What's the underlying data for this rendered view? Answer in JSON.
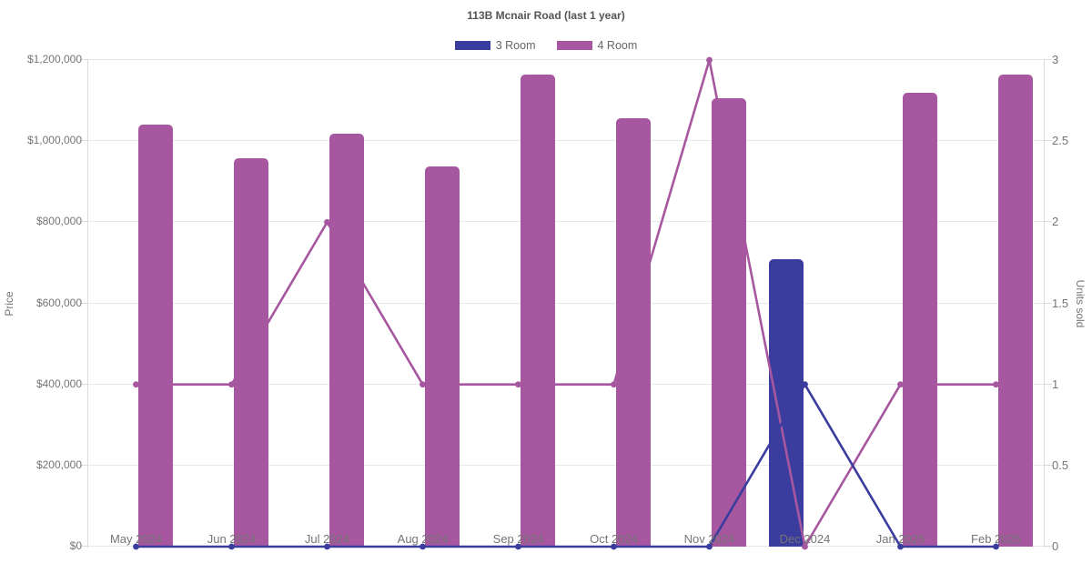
{
  "title": "113B Mcnair Road (last 1 year)",
  "legend": {
    "items": [
      {
        "label": "3 Room",
        "color": "#3a3c9e"
      },
      {
        "label": "4 Room",
        "color": "#a6579f"
      }
    ]
  },
  "chart_data": {
    "type": "bar+line combo",
    "title": "113B Mcnair Road (last 1 year)",
    "categories": [
      "May 2024",
      "Jun 2024",
      "Jul 2024",
      "Aug 2024",
      "Sep 2024",
      "Oct 2024",
      "Nov 2024",
      "Dec 2024",
      "Jan 2025",
      "Feb 2025"
    ],
    "series": [
      {
        "name": "3 Room",
        "type": "bar",
        "yaxis": "left",
        "color": "#3a3c9e",
        "bar_slot": 0,
        "values": [
          null,
          null,
          null,
          null,
          null,
          null,
          null,
          708000,
          null,
          null
        ]
      },
      {
        "name": "4 Room",
        "type": "bar",
        "yaxis": "left",
        "color": "#a6579f",
        "bar_slot": 1,
        "values": [
          1040000,
          957000,
          1018000,
          938000,
          1165000,
          1056000,
          1105000,
          null,
          1120000,
          1165000
        ]
      },
      {
        "name": "4 Room units sold",
        "type": "line",
        "yaxis": "right",
        "color": "#a6579f",
        "values": [
          1,
          1,
          2,
          1,
          1,
          1,
          3,
          0,
          1,
          1
        ]
      },
      {
        "name": "3 Room units sold",
        "type": "line",
        "yaxis": "right",
        "color": "#3a3c9e",
        "values": [
          0,
          0,
          0,
          0,
          0,
          0,
          0,
          1,
          0,
          0
        ]
      }
    ],
    "ylabel_left": "Price",
    "ylabel_right": "Units sold",
    "ylim_left": [
      0,
      1200000
    ],
    "ylim_right": [
      0,
      3
    ],
    "y_left_tick_labels": [
      "$0",
      "$200,000",
      "$400,000",
      "$600,000",
      "$800,000",
      "$1,000,000",
      "$1,200,000"
    ],
    "y_right_tick_labels": [
      "0",
      "0.5",
      "1",
      "1.5",
      "2",
      "2.5",
      "3"
    ],
    "grid": "horizontal",
    "legend_position": "top"
  }
}
